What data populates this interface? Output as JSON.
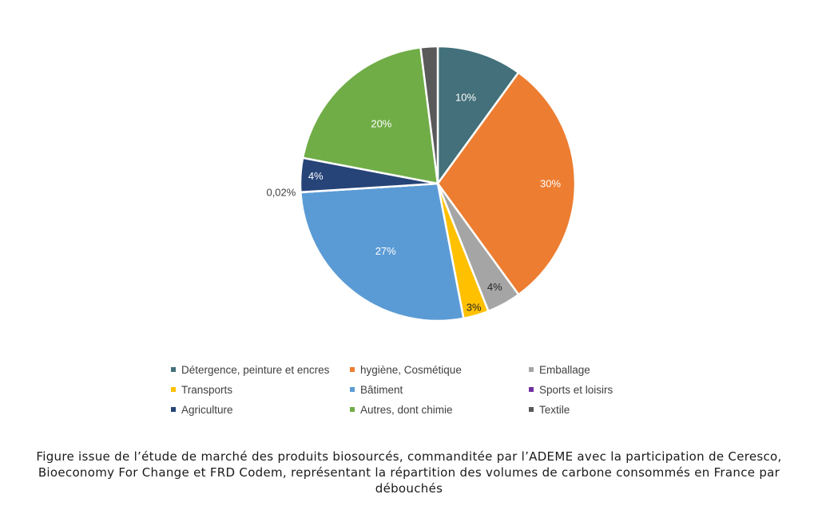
{
  "chart_data": {
    "type": "pie",
    "title": "",
    "slices": [
      {
        "name": "Détergence, peinture et encres",
        "value": 10,
        "label": "10%",
        "color": "#43707A"
      },
      {
        "name": "hygiène, Cosmétique",
        "value": 30,
        "label": "30%",
        "color": "#ED7D31"
      },
      {
        "name": "Emballage",
        "value": 4,
        "label": "4%",
        "color": "#A5A5A5"
      },
      {
        "name": "Transports",
        "value": 3,
        "label": "3%",
        "color": "#FFC000"
      },
      {
        "name": "Bâtiment",
        "value": 27,
        "label": "27%",
        "color": "#5B9BD5"
      },
      {
        "name": "Sports et loisirs",
        "value": 0.02,
        "label": "0,02%",
        "color": "#7030A0"
      },
      {
        "name": "Agriculture",
        "value": 4,
        "label": "4%",
        "color": "#264478"
      },
      {
        "name": "Autres, dont chimie",
        "value": 20,
        "label": "20%",
        "color": "#70AD47"
      },
      {
        "name": "Textile",
        "value": 2,
        "label": "",
        "color": "#595959"
      }
    ],
    "legend_position": "bottom"
  },
  "caption": "Figure issue de l’étude de marché des produits biosourcés, commanditée par l’ADEME avec la participation de Ceresco, Bioeconomy For Change et FRD Codem, représentant la répartition des volumes de carbone consommés en France par débouchés"
}
